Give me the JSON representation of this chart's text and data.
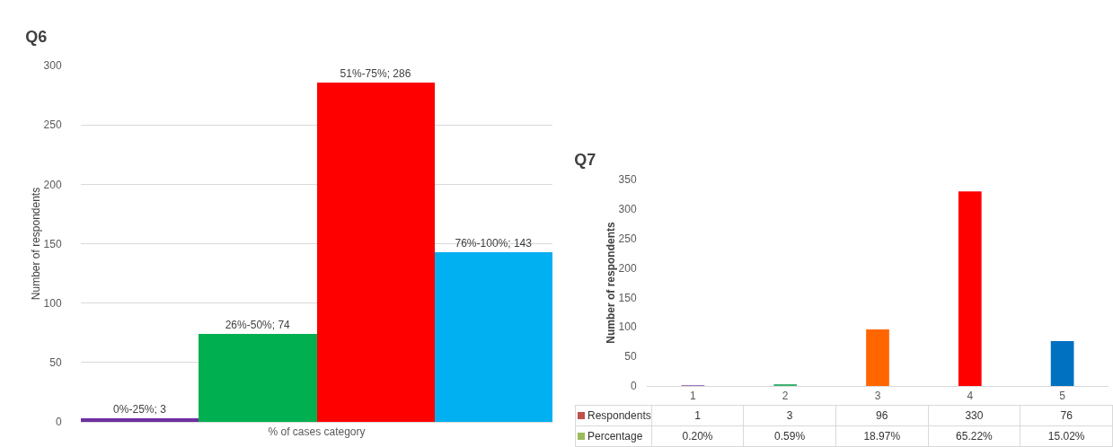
{
  "chart_data": [
    {
      "type": "bar",
      "title": "Q6",
      "xlabel": "% of cases category",
      "ylabel": "Number of respondents",
      "categories": [
        null,
        null,
        null,
        null
      ],
      "values": [
        3,
        74,
        286,
        143
      ],
      "colors": [
        "#7030a0",
        "#00b050",
        "#ff0000",
        "#00b0f0"
      ],
      "value_labels": [
        "0%-25%; 3",
        "26%-50%; 74",
        "51%-75%; 286",
        "76%-100%; 143"
      ],
      "ylim": [
        0,
        300
      ],
      "yticks": [
        0,
        50,
        100,
        150,
        200,
        250,
        300
      ],
      "grid": "y"
    },
    {
      "type": "bar",
      "title": "Q7",
      "ylabel": "Number of respondents",
      "categories": [
        "1",
        "2",
        "3",
        "4",
        "5"
      ],
      "values": [
        1,
        3,
        96,
        330,
        76
      ],
      "colors": [
        "#7030a0",
        "#3cb371",
        "#ff6600",
        "#ff0000",
        "#0070c0"
      ],
      "data_labels": true,
      "annotations": [
        "Respondents",
        "Percentage",
        "0.20%",
        "0.59%",
        "18.97%",
        "65.22%",
        "15.02%"
      ],
      "ylim": [
        0,
        350
      ],
      "yticks": [
        0,
        50,
        100,
        150,
        200,
        250,
        300,
        350
      ]
    }
  ]
}
